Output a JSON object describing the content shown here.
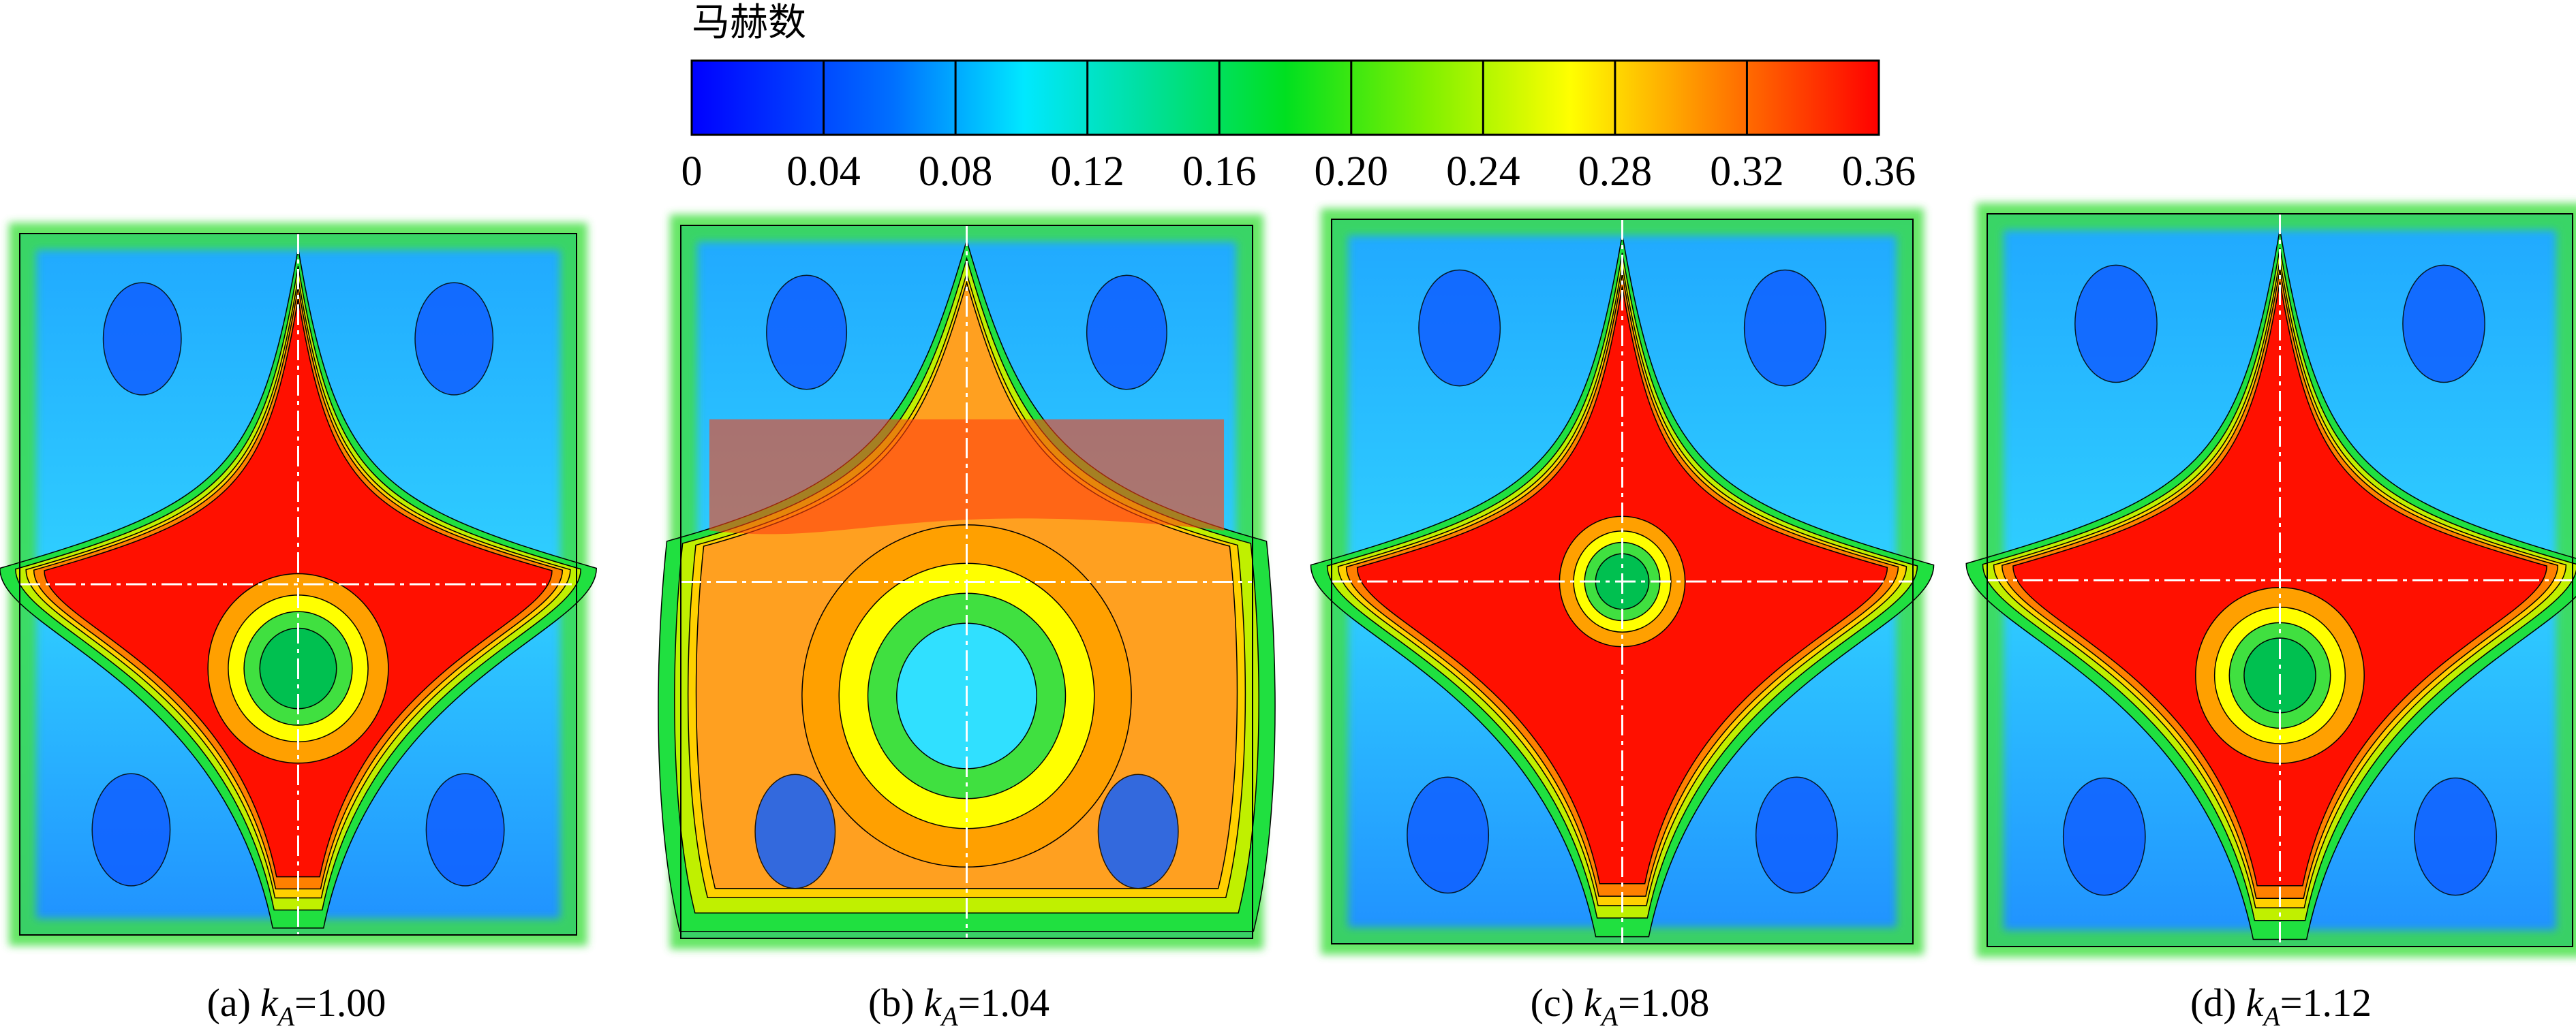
{
  "colorbar": {
    "title": "马赫数",
    "range": [
      0,
      0.36
    ],
    "ticks": [
      0,
      0.04,
      0.08,
      0.12,
      0.16,
      {
        "value": 0.2,
        "label": "0.20"
      },
      0.24,
      0.28,
      0.32,
      0.36
    ]
  },
  "panels": [
    {
      "label": "(a)",
      "var": "k",
      "sub": "A",
      "value": "=1.00"
    },
    {
      "label": "(b)",
      "var": "k",
      "sub": "A",
      "value": "=1.04"
    },
    {
      "label": "(c)",
      "var": "k",
      "sub": "A",
      "value": "=1.08"
    },
    {
      "label": "(d)",
      "var": "k",
      "sub": "A",
      "value": "=1.12"
    }
  ]
}
